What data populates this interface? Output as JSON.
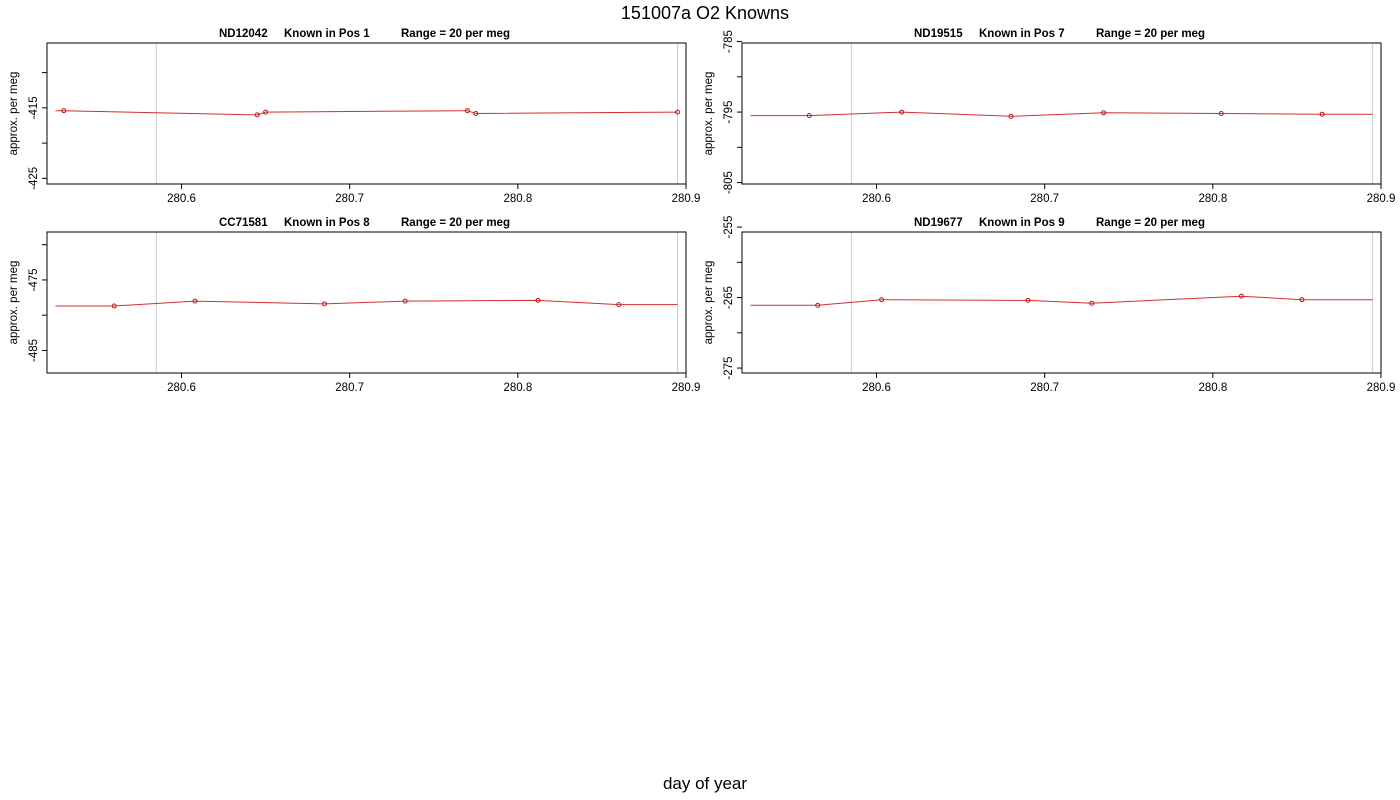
{
  "title": "151007a   O2 Knowns",
  "xlabel": "day of year",
  "colors": {
    "line": "#d32f2f",
    "marker": "#b71c1c",
    "vline": "#cccccc",
    "axis": "#000000"
  },
  "chart_data": [
    {
      "type": "line",
      "id": "ND12042",
      "title_parts": [
        "ND12042",
        "Known in Pos 1",
        "Range = 20 per meg"
      ],
      "ylabel": "approx. per meg",
      "xlim": [
        280.52,
        280.9
      ],
      "xticks": [
        280.6,
        280.7,
        280.8,
        280.9
      ],
      "xtick_labels": [
        "280.6",
        "280.7",
        "280.8",
        "280.9"
      ],
      "ylim": [
        -425.8,
        -405.8
      ],
      "yticks": [
        -410,
        -415,
        -420,
        -425
      ],
      "ytick_labels": [
        "",
        "-415",
        "",
        "-425"
      ],
      "vlines": [
        280.585,
        280.895
      ],
      "line_x": [
        280.525,
        280.53,
        280.645,
        280.65,
        280.77,
        280.775,
        280.895
      ],
      "line_y": [
        -415.4,
        -415.4,
        -416.0,
        -415.6,
        -415.4,
        -415.8,
        -415.6
      ],
      "marker_x": [
        280.53,
        280.645,
        280.65,
        280.77,
        280.775,
        280.895
      ],
      "marker_y": [
        -415.4,
        -416.0,
        -415.6,
        -415.4,
        -415.8,
        -415.6
      ]
    },
    {
      "type": "line",
      "id": "ND19515",
      "title_parts": [
        "ND19515",
        "Known in Pos 7",
        "Range = 20 per meg"
      ],
      "ylabel": "approx. per meg",
      "xlim": [
        280.52,
        280.9
      ],
      "xticks": [
        280.6,
        280.7,
        280.8,
        280.9
      ],
      "xtick_labels": [
        "280.6",
        "280.7",
        "280.8",
        "280.9"
      ],
      "ylim": [
        -805.2,
        -785.2
      ],
      "yticks": [
        -785,
        -790,
        -795,
        -800,
        -805
      ],
      "ytick_labels": [
        "-785",
        "",
        "-795",
        "",
        "-805"
      ],
      "vlines": [
        280.585,
        280.895
      ],
      "line_x": [
        280.525,
        280.56,
        280.615,
        280.68,
        280.735,
        280.805,
        280.865,
        280.895
      ],
      "line_y": [
        -795.5,
        -795.5,
        -795.0,
        -795.6,
        -795.1,
        -795.2,
        -795.3,
        -795.3
      ],
      "marker_x": [
        280.56,
        280.615,
        280.68,
        280.735,
        280.805,
        280.865
      ],
      "marker_y": [
        -795.5,
        -795.0,
        -795.6,
        -795.1,
        -795.2,
        -795.3
      ]
    },
    {
      "type": "line",
      "id": "CC71581",
      "title_parts": [
        "CC71581",
        "Known in Pos 8",
        "Range = 20 per meg"
      ],
      "ylabel": "approx. per meg",
      "xlim": [
        280.52,
        280.9
      ],
      "xticks": [
        280.6,
        280.7,
        280.8,
        280.9
      ],
      "xtick_labels": [
        "280.6",
        "280.7",
        "280.8",
        "280.9"
      ],
      "ylim": [
        -488.2,
        -468.2
      ],
      "yticks": [
        -470,
        -475,
        -480,
        -485
      ],
      "ytick_labels": [
        "",
        "-475",
        "",
        "-485"
      ],
      "vlines": [
        280.585,
        280.895
      ],
      "line_x": [
        280.525,
        280.56,
        280.608,
        280.685,
        280.733,
        280.812,
        280.86,
        280.895
      ],
      "line_y": [
        -478.7,
        -478.7,
        -478.0,
        -478.4,
        -478.0,
        -477.9,
        -478.5,
        -478.5
      ],
      "marker_x": [
        280.56,
        280.608,
        280.685,
        280.733,
        280.812,
        280.86
      ],
      "marker_y": [
        -478.7,
        -478.0,
        -478.4,
        -478.0,
        -477.9,
        -478.5
      ]
    },
    {
      "type": "line",
      "id": "ND19677",
      "title_parts": [
        "ND19677",
        "Known in Pos 9",
        "Range = 20 per meg"
      ],
      "ylabel": "approx. per meg",
      "xlim": [
        280.52,
        280.9
      ],
      "xticks": [
        280.6,
        280.7,
        280.8,
        280.9
      ],
      "xtick_labels": [
        "280.6",
        "280.7",
        "280.8",
        "280.9"
      ],
      "ylim": [
        -275.7,
        -255.7
      ],
      "yticks": [
        -255,
        -260,
        -265,
        -270,
        -275
      ],
      "ytick_labels": [
        "-255",
        "",
        "-265",
        "",
        "-275"
      ],
      "vlines": [
        280.585,
        280.895
      ],
      "line_x": [
        280.525,
        280.565,
        280.603,
        280.69,
        280.728,
        280.817,
        280.853,
        280.895
      ],
      "line_y": [
        -266.1,
        -266.1,
        -265.3,
        -265.4,
        -265.8,
        -264.8,
        -265.3,
        -265.3
      ],
      "marker_x": [
        280.565,
        280.603,
        280.69,
        280.728,
        280.817,
        280.853
      ],
      "marker_y": [
        -266.1,
        -265.3,
        -265.4,
        -265.8,
        -264.8,
        -265.3
      ]
    }
  ]
}
